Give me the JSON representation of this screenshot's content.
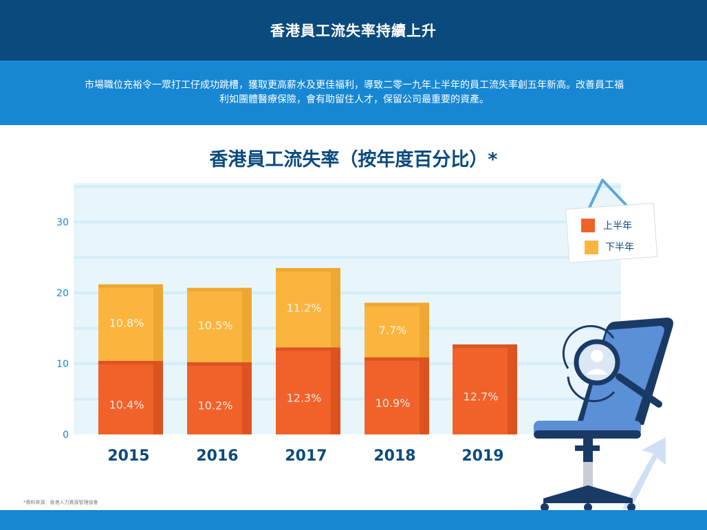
{
  "header": {
    "title": "香港員工流失率持續上升"
  },
  "intro": {
    "text": "市場職位充裕令一眾打工仔成功跳槽，獲取更高薪水及更佳福利，導致二零一九年上半年的員工流失率創五年新高。改善員工福利如團體醫療保險，會有助留住人才，保留公司最重要的資產。"
  },
  "chart_data": {
    "type": "bar",
    "stacked": true,
    "title": "香港員工流失率（按年度百分比）*",
    "xlabel": "",
    "ylabel": "",
    "categories": [
      "2015",
      "2016",
      "2017",
      "2018",
      "2019"
    ],
    "series": [
      {
        "name": "上半年",
        "color": "#f0622a",
        "values": [
          10.4,
          10.2,
          12.3,
          10.9,
          12.7
        ],
        "labels": [
          "10.4%",
          "10.2%",
          "12.3%",
          "10.9%",
          "12.7%"
        ]
      },
      {
        "name": "下半年",
        "color": "#fbb53f",
        "values": [
          10.8,
          10.5,
          11.2,
          7.7,
          null
        ],
        "labels": [
          "10.8%",
          "10.5%",
          "11.2%",
          "7.7%",
          ""
        ]
      }
    ],
    "yticks": [
      "0",
      "10",
      "20",
      "30"
    ],
    "ylim": [
      0,
      35
    ],
    "grid": true,
    "legend_position": "top-right"
  },
  "footnote": "*資料來源：香港人力資源管理協會",
  "colors": {
    "dark_blue": "#0b4a7d",
    "bright_blue": "#1787d3",
    "plot_bg": "#e8f6fc"
  }
}
